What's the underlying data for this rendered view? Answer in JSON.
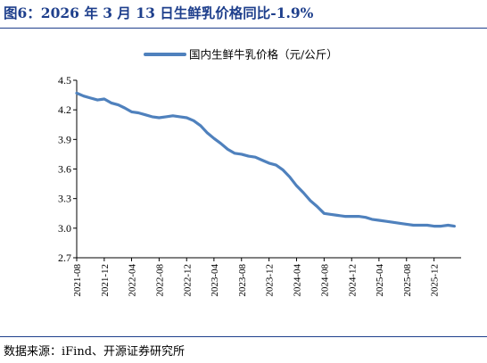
{
  "header": {
    "title": "图6：2026 年 3 月 13 日生鲜乳价格同比-1.9%"
  },
  "footer": {
    "source": "数据来源：iFind、开源证券研究所"
  },
  "colors": {
    "line": "#4f81bd",
    "title": "#1e3f8c"
  },
  "chart_data": {
    "type": "line",
    "title": "图6：2026 年 3 月 13 日生鲜乳价格同比-1.9%",
    "xlabel": "",
    "ylabel": "",
    "ylim": [
      2.7,
      4.5
    ],
    "yticks": [
      "2.7",
      "3.0",
      "3.3",
      "3.6",
      "3.9",
      "4.2",
      "4.5"
    ],
    "xticks": [
      "2021-08",
      "2021-12",
      "2022-04",
      "2022-08",
      "2022-12",
      "2023-04",
      "2023-08",
      "2023-12",
      "2024-04",
      "2024-08",
      "2024-12",
      "2025-04",
      "2025-08",
      "2025-12"
    ],
    "legend": "top-center",
    "grid": false,
    "series": [
      {
        "name": "国内生鲜牛乳价格（元/公斤）",
        "x": [
          "2021-08-01",
          "2021-09-01",
          "2021-10-01",
          "2021-11-01",
          "2021-12-01",
          "2022-01-01",
          "2022-02-01",
          "2022-03-01",
          "2022-04-01",
          "2022-05-01",
          "2022-06-01",
          "2022-07-01",
          "2022-08-01",
          "2022-09-01",
          "2022-10-01",
          "2022-11-01",
          "2022-12-01",
          "2023-01-01",
          "2023-02-01",
          "2023-03-01",
          "2023-04-01",
          "2023-05-01",
          "2023-06-01",
          "2023-07-01",
          "2023-08-01",
          "2023-09-01",
          "2023-10-01",
          "2023-11-01",
          "2023-12-01",
          "2024-01-01",
          "2024-02-01",
          "2024-03-01",
          "2024-04-01",
          "2024-05-01",
          "2024-06-01",
          "2024-07-01",
          "2024-08-01",
          "2024-09-01",
          "2024-10-01",
          "2024-11-01",
          "2024-12-01",
          "2025-01-01",
          "2025-02-01",
          "2025-03-01",
          "2025-04-01",
          "2025-05-01",
          "2025-06-01",
          "2025-07-01",
          "2025-08-01",
          "2025-09-01",
          "2025-10-01",
          "2025-11-01",
          "2025-12-01",
          "2026-01-01",
          "2026-02-01",
          "2026-03-01"
        ],
        "values": [
          4.37,
          4.34,
          4.32,
          4.3,
          4.31,
          4.27,
          4.25,
          4.22,
          4.18,
          4.17,
          4.15,
          4.13,
          4.12,
          4.13,
          4.14,
          4.13,
          4.12,
          4.09,
          4.04,
          3.97,
          3.91,
          3.86,
          3.8,
          3.76,
          3.75,
          3.73,
          3.72,
          3.69,
          3.66,
          3.64,
          3.59,
          3.52,
          3.43,
          3.36,
          3.28,
          3.22,
          3.15,
          3.14,
          3.13,
          3.12,
          3.12,
          3.12,
          3.11,
          3.09,
          3.08,
          3.07,
          3.06,
          3.05,
          3.04,
          3.03,
          3.03,
          3.03,
          3.02,
          3.02,
          3.03,
          3.02
        ]
      }
    ]
  }
}
